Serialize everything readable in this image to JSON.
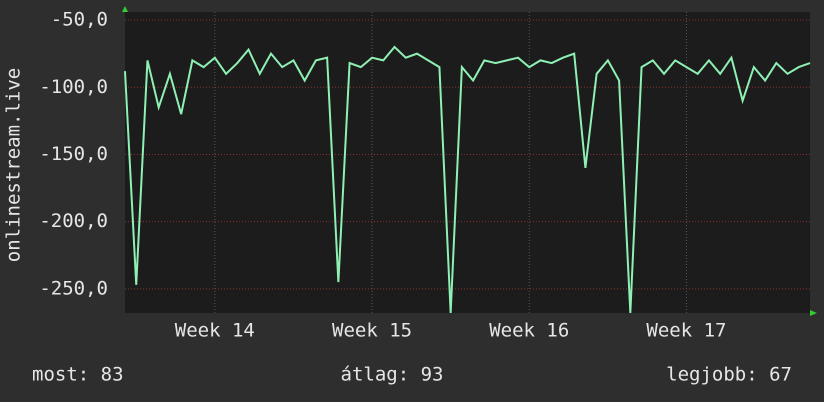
{
  "chart_data": {
    "type": "line",
    "y_label": "onlinestream.live",
    "x": [
      0,
      0.5,
      1,
      1.5,
      2,
      2.5,
      3,
      3.5,
      4,
      4.5,
      5,
      5.5,
      6,
      6.5,
      7,
      7.5,
      8,
      8.5,
      9,
      9.5,
      10,
      10.5,
      11,
      11.5,
      12,
      12.5,
      13,
      13.5,
      14,
      14.5,
      15,
      15.5,
      16,
      16.5,
      17,
      17.5,
      18,
      18.5,
      19,
      19.5,
      20,
      20.5,
      21,
      21.5,
      22,
      22.5,
      23,
      23.5,
      24,
      24.5,
      25,
      25.5,
      26,
      26.5,
      27,
      27.5,
      28,
      28.5,
      29,
      29.5,
      30,
      30.5
    ],
    "series": [
      {
        "color": "#8ff0b4",
        "values": [
          -88,
          -247,
          -80,
          -115,
          -90,
          -120,
          -80,
          -85,
          -78,
          -90,
          -82,
          -72,
          -90,
          -75,
          -85,
          -80,
          -95,
          -80,
          -78,
          -245,
          -82,
          -85,
          -78,
          -80,
          -70,
          -78,
          -75,
          -80,
          -85,
          -268,
          -85,
          -95,
          -80,
          -82,
          -80,
          -78,
          -85,
          -80,
          -82,
          -78,
          -75,
          -160,
          -90,
          -80,
          -95,
          -268,
          -85,
          -80,
          -90,
          -80,
          -85,
          -90,
          -80,
          -90,
          -78,
          -110,
          -85,
          -95,
          -82,
          -90,
          -85,
          -82
        ]
      }
    ],
    "xlim": [
      0,
      30.5
    ],
    "ylim": [
      -268,
      -44
    ],
    "xticks": [
      {
        "value": 4,
        "label": "Week 14"
      },
      {
        "value": 11,
        "label": "Week 15"
      },
      {
        "value": 18,
        "label": "Week 16"
      },
      {
        "value": 25,
        "label": "Week 17"
      }
    ],
    "yticks": [
      {
        "value": -50,
        "label": "-50,0"
      },
      {
        "value": -100,
        "label": "-100,0"
      },
      {
        "value": -150,
        "label": "-150,0"
      },
      {
        "value": -200,
        "label": "-200,0"
      },
      {
        "value": -250,
        "label": "-250,0"
      }
    ],
    "grid": true,
    "footer": [
      "most: 83",
      "átlag: 93",
      "legjobb: 67"
    ]
  }
}
